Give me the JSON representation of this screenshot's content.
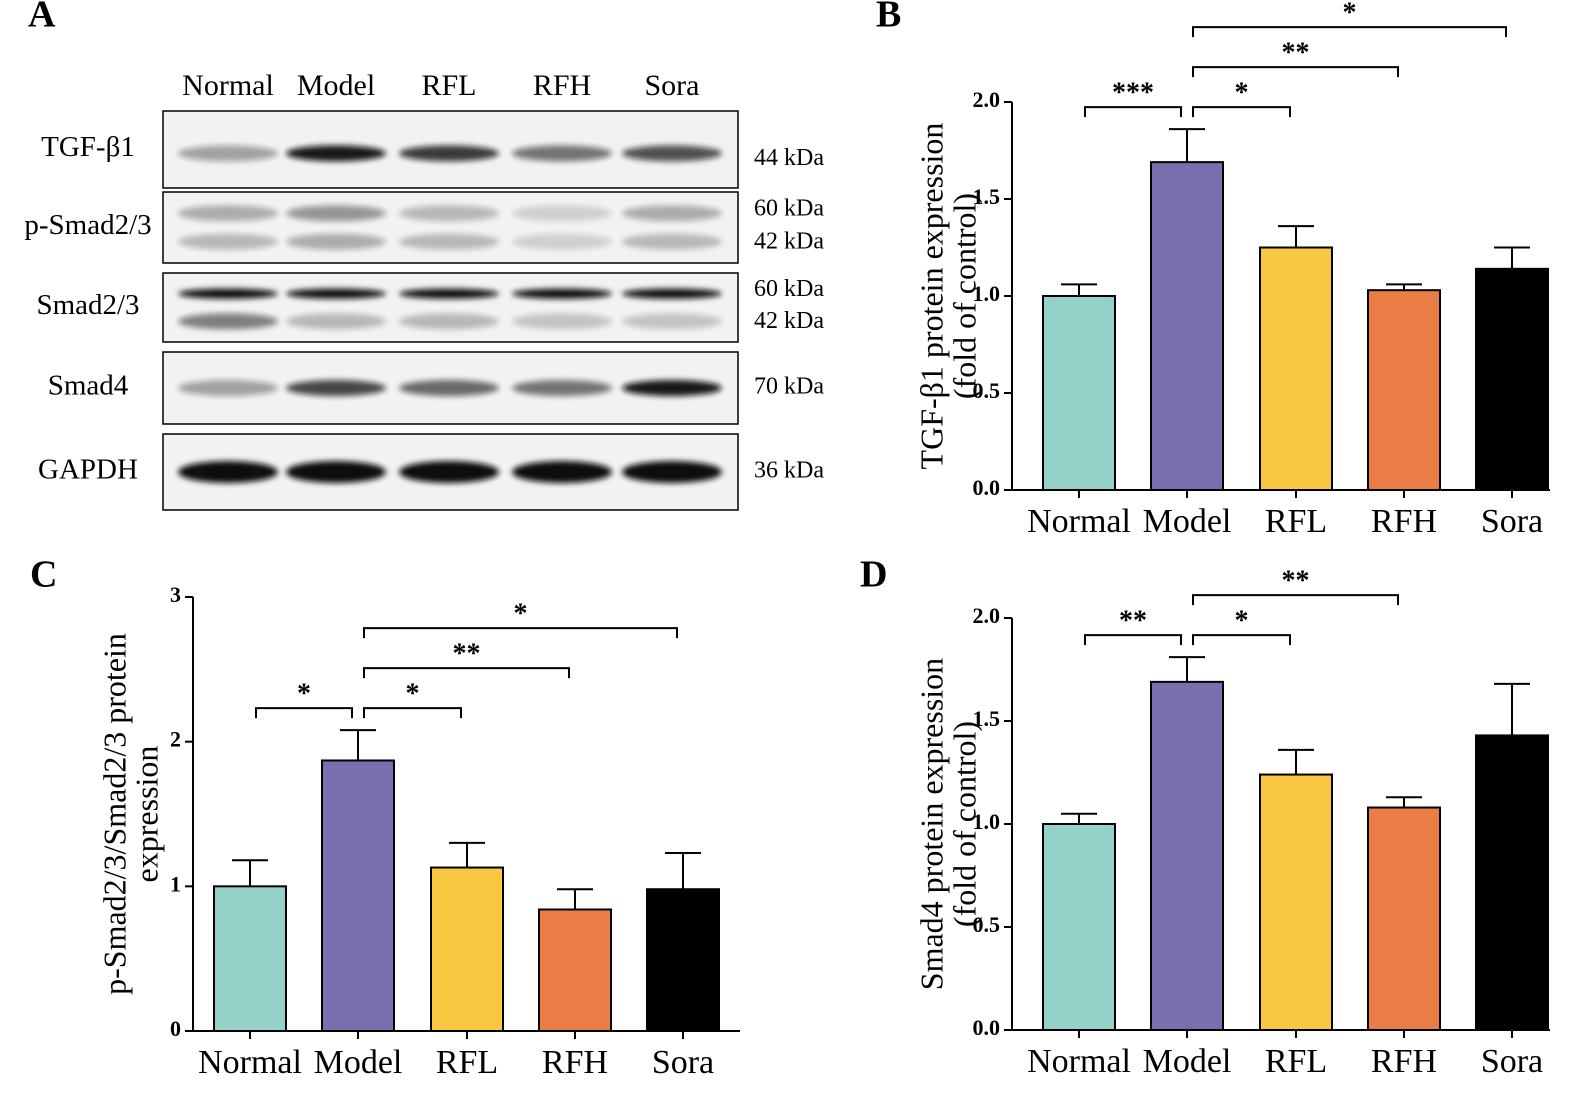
{
  "blot": {
    "panel": "A",
    "lanes": [
      "Normal",
      "Model",
      "RFL",
      "RFH",
      "Sora"
    ],
    "rows": [
      {
        "name": "TGF-β1",
        "sizes": [
          "44 kDa"
        ]
      },
      {
        "name": "p-Smad2/3",
        "sizes": [
          "60 kDa",
          "42 kDa"
        ]
      },
      {
        "name": "Smad2/3",
        "sizes": [
          "60 kDa",
          "42 kDa"
        ]
      },
      {
        "name": "Smad4",
        "sizes": [
          "70 kDa"
        ]
      },
      {
        "name": "GAPDH",
        "sizes": [
          "36 kDa"
        ]
      }
    ]
  },
  "chart_data": [
    {
      "type": "bar",
      "panel": "B",
      "ylabel": [
        "TGF-β1 protein expression",
        "(fold of control)"
      ],
      "categories": [
        "Normal",
        "Model",
        "RFL",
        "RFH",
        "Sora"
      ],
      "values": [
        1.0,
        1.69,
        1.25,
        1.03,
        1.14
      ],
      "errors": [
        0.06,
        0.17,
        0.11,
        0.03,
        0.11
      ],
      "colors": [
        "#96d1c9",
        "#7a6fae",
        "#f9c843",
        "#ea7c45",
        "#000000"
      ],
      "ylim": [
        0,
        2
      ],
      "yticks": [
        {
          "value": 0,
          "label": "0.0"
        },
        {
          "value": 0.5,
          "label": "0.5"
        },
        {
          "value": 1,
          "label": "1.0"
        },
        {
          "value": 1.5,
          "label": "1.5"
        },
        {
          "value": 2,
          "label": "2.0"
        }
      ],
      "annotations": [
        {
          "text": "***",
          "between": [
            "Normal",
            "Model"
          ]
        },
        {
          "text": "*",
          "between": [
            "Model",
            "RFL"
          ]
        },
        {
          "text": "**",
          "between": [
            "Model",
            "RFH"
          ]
        },
        {
          "text": "*",
          "between": [
            "Model",
            "Sora"
          ]
        }
      ]
    },
    {
      "type": "bar",
      "panel": "C",
      "ylabel": [
        "p-Smad2/3/Smad2/3 protein",
        "expression"
      ],
      "categories": [
        "Normal",
        "Model",
        "RFL",
        "RFH",
        "Sora"
      ],
      "values": [
        1.0,
        1.87,
        1.13,
        0.84,
        0.98
      ],
      "errors": [
        0.18,
        0.21,
        0.17,
        0.14,
        0.25
      ],
      "colors": [
        "#96d1c9",
        "#7a6fae",
        "#f9c843",
        "#ea7c45",
        "#000000"
      ],
      "ylim": [
        0,
        3
      ],
      "yticks": [
        0,
        1,
        2,
        3
      ],
      "annotations": [
        {
          "text": "*",
          "between": [
            "Normal",
            "Model"
          ]
        },
        {
          "text": "*",
          "between": [
            "Model",
            "RFL"
          ]
        },
        {
          "text": "**",
          "between": [
            "Model",
            "RFH"
          ]
        },
        {
          "text": "*",
          "between": [
            "Model",
            "Sora"
          ]
        }
      ]
    },
    {
      "type": "bar",
      "panel": "D",
      "ylabel": [
        "Smad4 protein expression",
        "(fold of control)"
      ],
      "categories": [
        "Normal",
        "Model",
        "RFL",
        "RFH",
        "Sora"
      ],
      "values": [
        1.0,
        1.69,
        1.24,
        1.08,
        1.43
      ],
      "errors": [
        0.05,
        0.12,
        0.12,
        0.05,
        0.25
      ],
      "colors": [
        "#96d1c9",
        "#7a6fae",
        "#f9c843",
        "#ea7c45",
        "#000000"
      ],
      "ylim": [
        0,
        2
      ],
      "yticks": [
        {
          "value": 0,
          "label": "0.0"
        },
        {
          "value": 0.5,
          "label": "0.5"
        },
        {
          "value": 1,
          "label": "1.0"
        },
        {
          "value": 1.5,
          "label": "1.5"
        },
        {
          "value": 2,
          "label": "2.0"
        }
      ],
      "annotations": [
        {
          "text": "**",
          "between": [
            "Normal",
            "Model"
          ]
        },
        {
          "text": "*",
          "between": [
            "Model",
            "RFL"
          ]
        },
        {
          "text": "**",
          "between": [
            "Model",
            "RFH"
          ]
        }
      ]
    }
  ]
}
